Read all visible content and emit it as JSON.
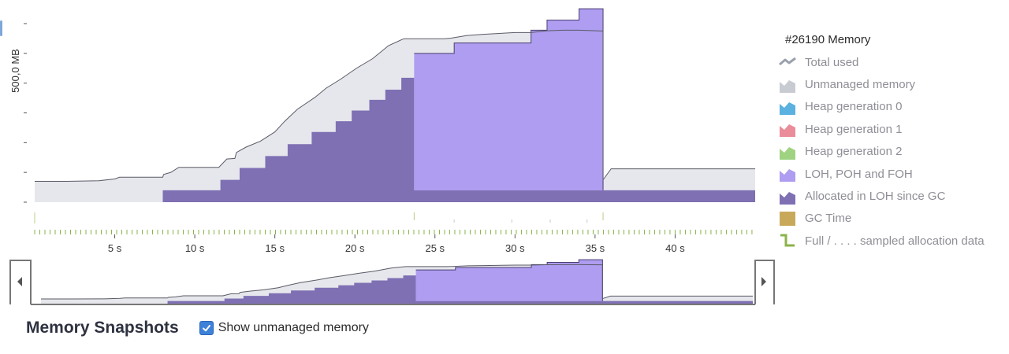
{
  "chart_data": {
    "type": "area",
    "ylabel": "500,0 MB",
    "xlim": [
      0,
      45
    ],
    "ylim_mb": [
      0,
      600
    ],
    "x_ticks": [
      5,
      10,
      15,
      20,
      25,
      30,
      35,
      40
    ],
    "x_tick_labels": [
      "5 s",
      "10 s",
      "15 s",
      "20 s",
      "25 s",
      "30 s",
      "35 s",
      "40 s"
    ],
    "series": [
      {
        "name": "Total used",
        "points": [
          [
            0,
            70
          ],
          [
            2,
            70
          ],
          [
            4,
            72
          ],
          [
            5,
            78
          ],
          [
            5.3,
            84
          ],
          [
            6,
            84
          ],
          [
            8,
            84
          ],
          [
            8.05,
            93
          ],
          [
            8.5,
            100
          ],
          [
            9,
            117
          ],
          [
            11.5,
            117
          ],
          [
            12,
            145
          ],
          [
            12.5,
            147
          ],
          [
            12.6,
            167
          ],
          [
            13.2,
            185
          ],
          [
            14.1,
            205
          ],
          [
            15,
            236
          ],
          [
            15.6,
            271
          ],
          [
            16.4,
            312
          ],
          [
            17.5,
            352
          ],
          [
            18.2,
            383
          ],
          [
            19.1,
            413
          ],
          [
            20.1,
            450
          ],
          [
            21.1,
            482
          ],
          [
            22.1,
            526
          ],
          [
            23,
            548
          ],
          [
            23.1,
            549
          ],
          [
            25.6,
            549
          ],
          [
            26,
            551
          ],
          [
            27,
            560
          ],
          [
            28,
            564
          ],
          [
            30,
            570
          ],
          [
            31,
            570
          ],
          [
            32,
            576
          ],
          [
            32.5,
            577
          ],
          [
            33,
            578
          ],
          [
            34,
            578
          ],
          [
            35.5,
            575
          ],
          [
            35.5,
            75
          ],
          [
            36,
            112
          ],
          [
            45,
            112
          ]
        ]
      },
      {
        "name": "Allocated in LOH since GC",
        "points": [
          [
            0,
            0
          ],
          [
            8,
            0
          ],
          [
            8,
            40
          ],
          [
            11.6,
            40
          ],
          [
            11.6,
            75
          ],
          [
            12.8,
            75
          ],
          [
            12.8,
            115
          ],
          [
            14.4,
            115
          ],
          [
            14.4,
            155
          ],
          [
            15.8,
            155
          ],
          [
            15.8,
            195
          ],
          [
            17.3,
            195
          ],
          [
            17.3,
            236
          ],
          [
            18.8,
            236
          ],
          [
            18.8,
            272
          ],
          [
            19.8,
            272
          ],
          [
            19.8,
            308
          ],
          [
            20.9,
            308
          ],
          [
            20.9,
            344
          ],
          [
            21.9,
            344
          ],
          [
            21.9,
            378
          ],
          [
            22.9,
            378
          ],
          [
            22.9,
            418
          ],
          [
            23.7,
            418
          ],
          [
            23.7,
            460
          ],
          [
            23.7,
            40
          ],
          [
            35.5,
            40
          ],
          [
            45,
            40
          ]
        ]
      },
      {
        "name": "LOH, POH and FOH",
        "points": [
          [
            23.7,
            500
          ],
          [
            26.2,
            500
          ],
          [
            26.2,
            535
          ],
          [
            31,
            535
          ],
          [
            31,
            578
          ],
          [
            32,
            578
          ],
          [
            32,
            612
          ],
          [
            34,
            612
          ],
          [
            34,
            650
          ],
          [
            35.5,
            650
          ],
          [
            35.5,
            40
          ]
        ]
      },
      {
        "name": "GC Time",
        "points": []
      }
    ],
    "gc_markers": [
      0,
      23.7,
      35.5
    ],
    "sample_markers": [
      26.2,
      29.8,
      32.2,
      34.5
    ]
  },
  "legend": {
    "title": "#26190 Memory",
    "items": [
      {
        "label": "Total used",
        "icon": "line-icon",
        "color": "#9aa1ad"
      },
      {
        "label": "Unmanaged memory",
        "icon": "area-icon",
        "color": "#c9cbd2"
      },
      {
        "label": "Heap generation 0",
        "icon": "area-icon",
        "color": "#5bb1e0"
      },
      {
        "label": "Heap generation 1",
        "icon": "area-icon",
        "color": "#ea8c99"
      },
      {
        "label": "Heap generation 2",
        "icon": "area-icon",
        "color": "#9fd381"
      },
      {
        "label": "LOH, POH and FOH",
        "icon": "area-icon",
        "color": "#ae9df0"
      },
      {
        "label": "Allocated in LOH since GC",
        "icon": "area-icon",
        "color": "#7f70b4"
      },
      {
        "label": "GC Time",
        "icon": "square-icon",
        "color": "#c8a95a"
      },
      {
        "label": "Full / . . . . sampled allocation data",
        "icon": "step-icon",
        "color": "#8ab34a"
      }
    ]
  },
  "colors": {
    "unmanaged": "#e6e7ec",
    "unmanaged_stroke": "#5a5a66",
    "loh": "#ae9df0",
    "loh_alloc": "#7f70b4",
    "axis": "#555555",
    "sample_tick": "#8ab34a",
    "nav_frame": "#777777"
  },
  "snapshots": {
    "title": "Memory Snapshots",
    "checkbox_label": "Show unmanaged memory",
    "checked": true
  }
}
